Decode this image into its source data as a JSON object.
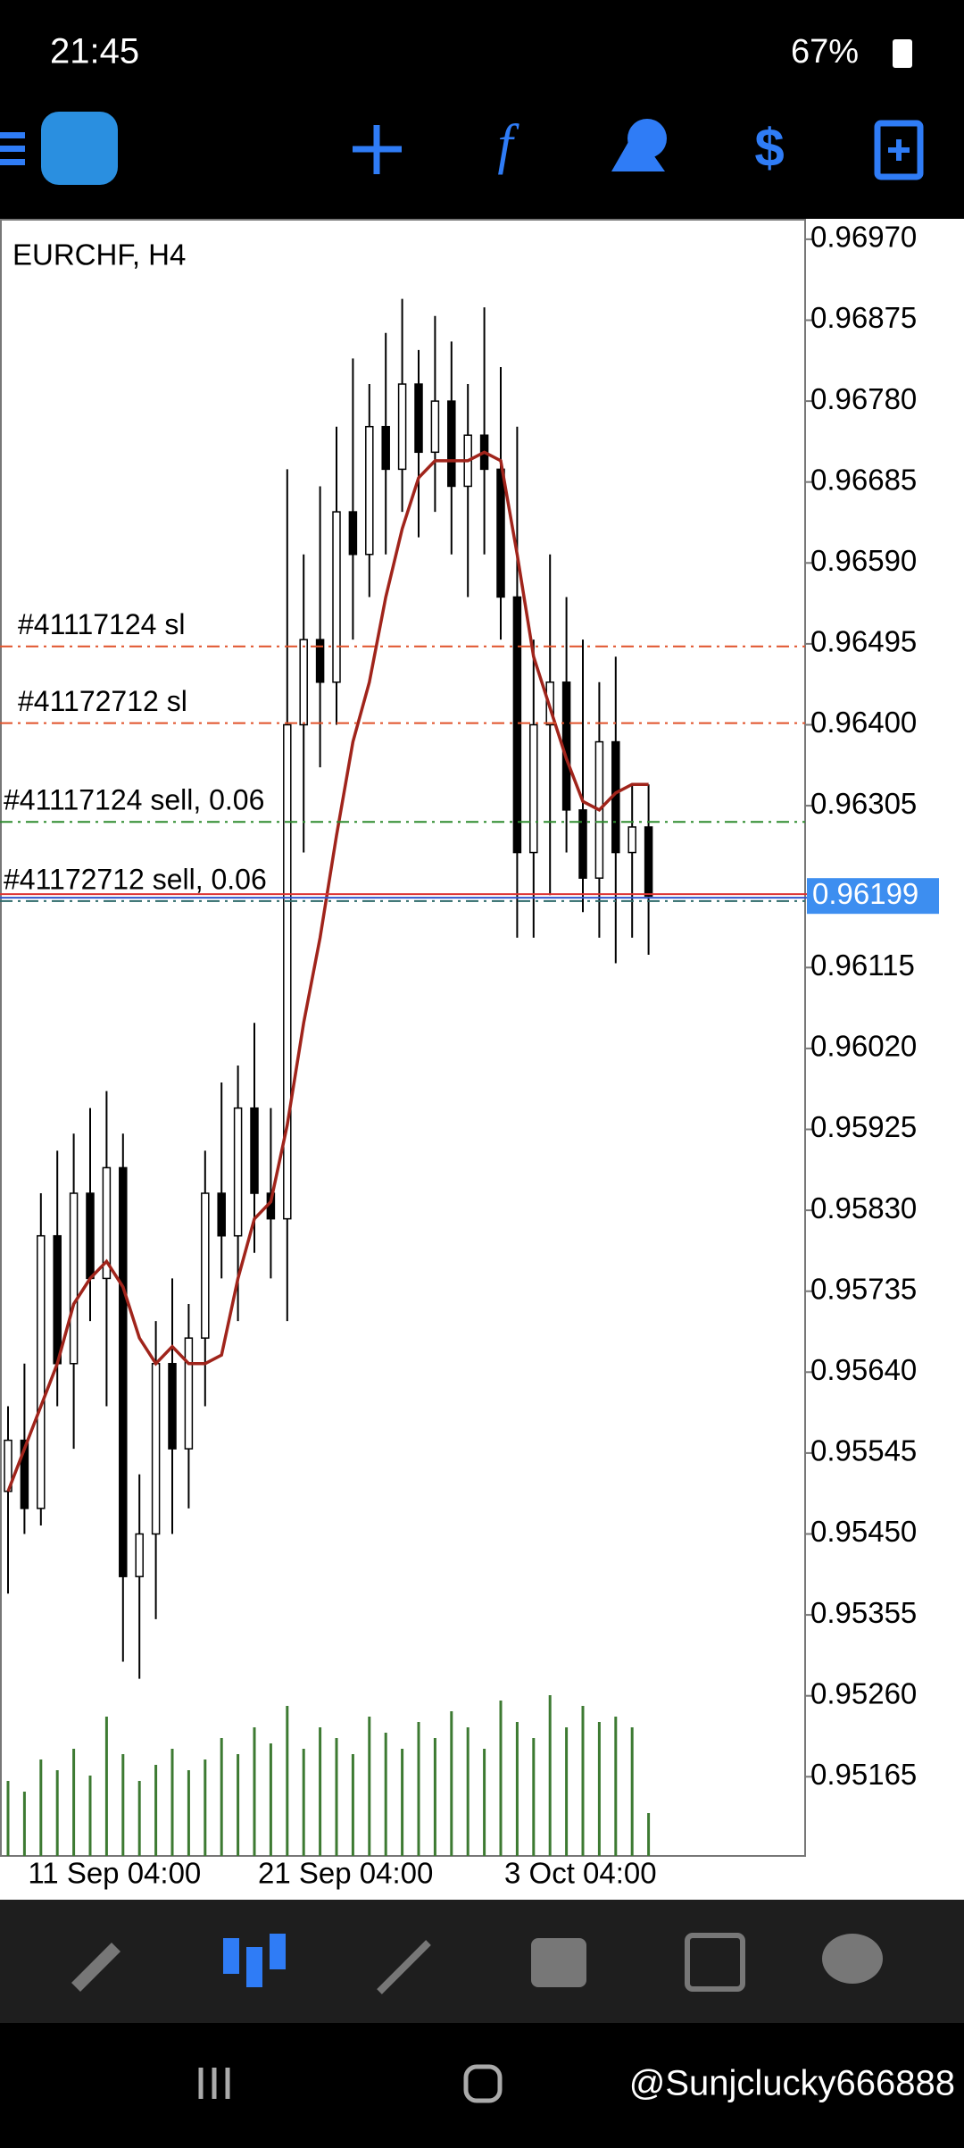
{
  "status_bar": {
    "time": "21:45",
    "battery": "67%"
  },
  "watermark": "@Sunjclucky666888",
  "chart_data": {
    "type": "candlestick",
    "title": "EURCHF, H4",
    "categories": [
      null,
      "11 Sep 04:00",
      null,
      null,
      null,
      null,
      null,
      null,
      null,
      null,
      null,
      null,
      null,
      null,
      null,
      "21 Sep 04:00",
      null,
      null,
      null,
      null,
      null,
      null,
      null,
      null,
      null,
      null,
      null,
      null,
      null,
      null,
      "3 Oct 04:00",
      null,
      null,
      null,
      null,
      null,
      null,
      null,
      null,
      null
    ],
    "open": [
      0.955,
      0.9556,
      0.9548,
      0.958,
      0.9565,
      0.9585,
      0.9575,
      0.9588,
      0.954,
      0.9545,
      0.9565,
      0.9555,
      0.9568,
      0.9585,
      0.958,
      0.9595,
      0.9585,
      0.9582,
      0.964,
      0.965,
      0.9645,
      0.9665,
      0.966,
      0.9675,
      0.967,
      0.968,
      0.9672,
      0.9678,
      0.9668,
      0.9674,
      0.967,
      0.9655,
      0.9625,
      0.964,
      0.9645,
      0.963,
      0.9622,
      0.9638,
      0.9625,
      0.9628
    ],
    "high": [
      0.956,
      0.9565,
      0.9585,
      0.959,
      0.9592,
      0.9595,
      0.9597,
      0.9592,
      0.9552,
      0.957,
      0.9575,
      0.9572,
      0.959,
      0.9598,
      0.96,
      0.9605,
      0.9595,
      0.967,
      0.966,
      0.9668,
      0.9675,
      0.9683,
      0.968,
      0.9686,
      0.969,
      0.9684,
      0.9688,
      0.9685,
      0.968,
      0.9689,
      0.9682,
      0.9675,
      0.965,
      0.966,
      0.9655,
      0.965,
      0.9645,
      0.9648,
      0.9633,
      0.9633
    ],
    "low": [
      0.9538,
      0.9545,
      0.9546,
      0.956,
      0.9555,
      0.957,
      0.956,
      0.953,
      0.9528,
      0.9535,
      0.9545,
      0.9548,
      0.956,
      0.9575,
      0.957,
      0.9578,
      0.9575,
      0.957,
      0.9625,
      0.9635,
      0.964,
      0.965,
      0.9655,
      0.966,
      0.9665,
      0.9662,
      0.9665,
      0.966,
      0.9655,
      0.966,
      0.965,
      0.9615,
      0.9615,
      0.962,
      0.9625,
      0.9618,
      0.9615,
      0.9612,
      0.9615,
      0.9613
    ],
    "close": [
      0.9556,
      0.9548,
      0.958,
      0.9565,
      0.9585,
      0.9575,
      0.9588,
      0.954,
      0.9545,
      0.9565,
      0.9555,
      0.9568,
      0.9585,
      0.958,
      0.9595,
      0.9585,
      0.9582,
      0.964,
      0.965,
      0.9645,
      0.9665,
      0.966,
      0.9675,
      0.967,
      0.968,
      0.9672,
      0.9678,
      0.9668,
      0.9674,
      0.967,
      0.9655,
      0.9625,
      0.964,
      0.9645,
      0.963,
      0.9622,
      0.9638,
      0.9625,
      0.9628,
      0.96199
    ],
    "ma": {
      "color": "#a0241b",
      "values": [
        0.955,
        0.9555,
        0.956,
        0.9565,
        0.9572,
        0.9575,
        0.9577,
        0.9574,
        0.9568,
        0.9565,
        0.9567,
        0.9565,
        0.9565,
        0.9566,
        0.9575,
        0.9582,
        0.9584,
        0.9593,
        0.9605,
        0.9615,
        0.9627,
        0.9638,
        0.9645,
        0.9655,
        0.9663,
        0.9669,
        0.9671,
        0.9671,
        0.9671,
        0.9672,
        0.9671,
        0.966,
        0.9648,
        0.9642,
        0.9636,
        0.9631,
        0.963,
        0.9632,
        0.9633,
        0.9633
      ]
    },
    "volume": {
      "color": "#3d7a32",
      "values": [
        70,
        60,
        90,
        80,
        100,
        75,
        130,
        95,
        70,
        85,
        100,
        80,
        90,
        110,
        95,
        120,
        105,
        140,
        100,
        120,
        110,
        95,
        130,
        115,
        100,
        125,
        110,
        135,
        120,
        100,
        145,
        125,
        110,
        150,
        120,
        140,
        125,
        130,
        120,
        40
      ]
    },
    "ylim": [
      0.95072,
      0.96994
    ],
    "yticks": [
      {
        "value": 0.9697,
        "label": "0.96970"
      },
      0.96875,
      {
        "value": 0.9678,
        "label": "0.96780"
      },
      0.96685,
      {
        "value": 0.9659,
        "label": "0.96590"
      },
      0.96495,
      {
        "value": 0.964,
        "label": "0.96400"
      },
      0.96305,
      0.96115,
      {
        "value": 0.9602,
        "label": "0.96020"
      },
      0.95925,
      {
        "value": 0.9583,
        "label": "0.95830"
      },
      0.95735,
      {
        "value": 0.9564,
        "label": "0.95640"
      },
      0.95545,
      {
        "value": 0.9545,
        "label": "0.95450"
      },
      0.95355,
      {
        "value": 0.9526,
        "label": "0.95260"
      },
      0.95165
    ],
    "current_price": 0.96199,
    "orders": [
      {
        "label": "#41117124 sl",
        "value": 0.96492,
        "color": "#e0522a"
      },
      {
        "label": "#41172712 sl",
        "value": 0.96402,
        "color": "#e0522a"
      },
      {
        "label": "#41117124 sell, 0.06",
        "value": 0.96286,
        "color": "#2e8b2e"
      },
      {
        "label": "#41172712 sell, 0.06",
        "value": 0.96193,
        "color": "#2e6b6b"
      }
    ]
  }
}
